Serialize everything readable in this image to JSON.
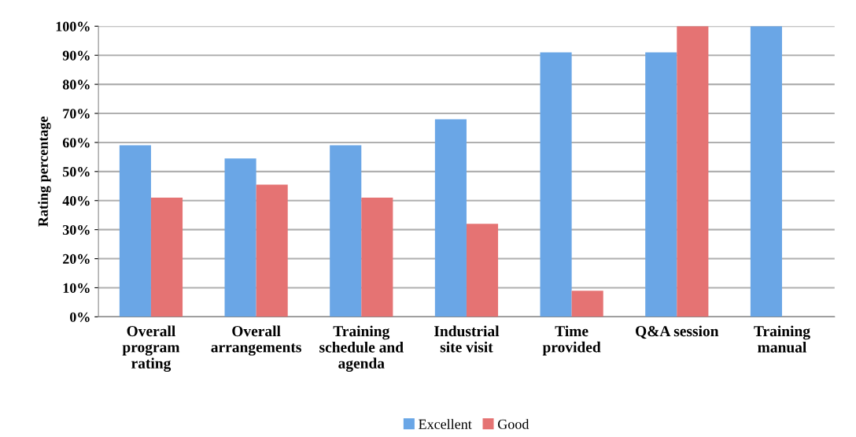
{
  "chart_data": {
    "type": "bar",
    "ylabel": "Rating percentage",
    "categories": [
      "Overall\nprogram\nrating",
      "Overall\narrangements",
      "Training\nschedule and\nagenda",
      "Industrial\nsite visit",
      "Time\nprovided",
      "Q&A session",
      "Training\nmanual"
    ],
    "series": [
      {
        "name": "Excellent",
        "color": "#6aa6e6",
        "values": [
          59,
          54.5,
          59,
          68,
          91,
          91,
          100
        ]
      },
      {
        "name": "Good",
        "color": "#e57373",
        "values": [
          41,
          45.5,
          41,
          32,
          9,
          100,
          null
        ]
      }
    ],
    "ylim": [
      0,
      100
    ],
    "yticks": [
      {
        "value": 0,
        "label": "0%"
      },
      {
        "value": 10,
        "label": "10%"
      },
      {
        "value": 20,
        "label": "20%"
      },
      {
        "value": 30,
        "label": "30%"
      },
      {
        "value": 40,
        "label": "40%"
      },
      {
        "value": 50,
        "label": "50%"
      },
      {
        "value": 60,
        "label": "60%"
      },
      {
        "value": 70,
        "label": "70%"
      },
      {
        "value": 80,
        "label": "80%"
      },
      {
        "value": 90,
        "label": "90%"
      },
      {
        "value": 100,
        "label": "100%"
      }
    ],
    "grid": "y",
    "legend": "bottom"
  }
}
